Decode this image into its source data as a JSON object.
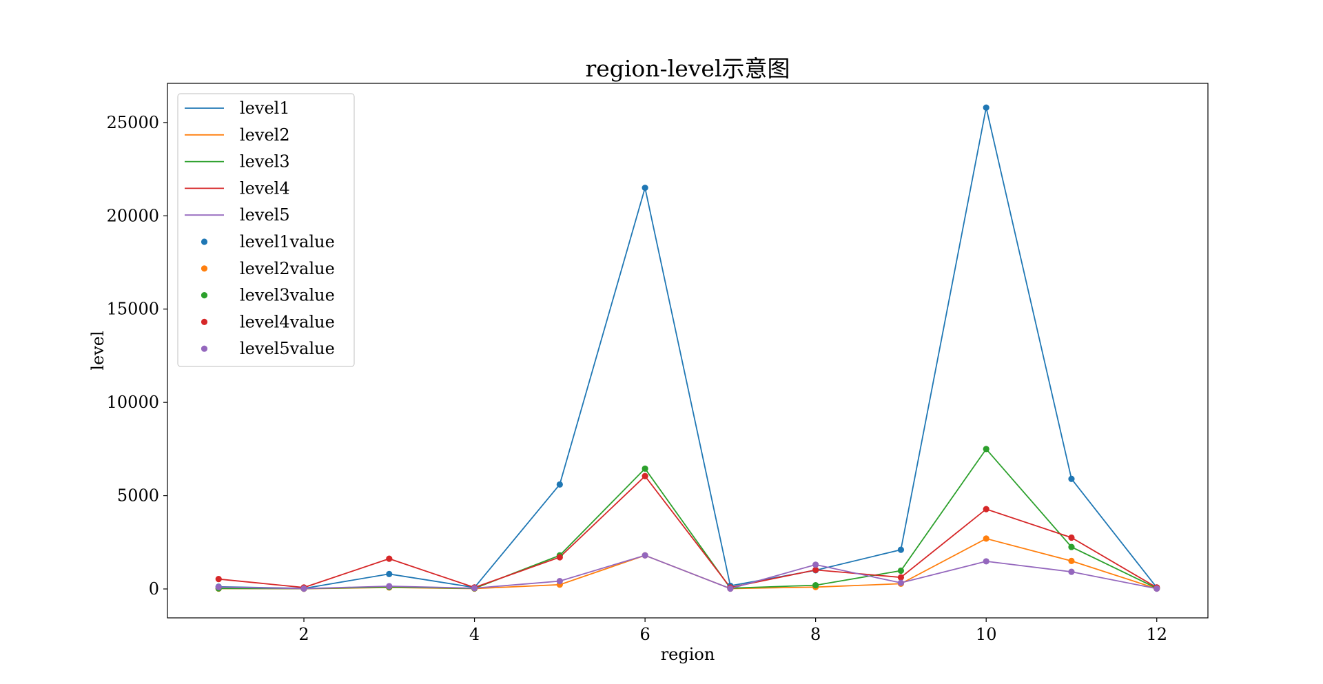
{
  "chart_data": {
    "type": "line",
    "title": "region-level示意图",
    "xlabel": "region",
    "ylabel": "level",
    "x": [
      1,
      2,
      3,
      4,
      5,
      6,
      7,
      8,
      9,
      10,
      11,
      12
    ],
    "xlim": [
      0.4,
      12.6
    ],
    "ylim": [
      -1550,
      27100
    ],
    "xticks": [
      2,
      4,
      6,
      8,
      10,
      12
    ],
    "yticks": [
      0,
      5000,
      10000,
      15000,
      20000,
      25000
    ],
    "grid": false,
    "legend_position": "top-left",
    "series": [
      {
        "name": "level1",
        "marker_name": "level1value",
        "color": "#1f77b4",
        "values": [
          120,
          30,
          800,
          80,
          5600,
          21500,
          170,
          1000,
          2100,
          25800,
          5900,
          80
        ]
      },
      {
        "name": "level2",
        "marker_name": "level2value",
        "color": "#ff7f0e",
        "values": [
          20,
          10,
          80,
          20,
          230,
          1800,
          20,
          100,
          280,
          2700,
          1500,
          20
        ]
      },
      {
        "name": "level3",
        "marker_name": "level3value",
        "color": "#2ca02c",
        "values": [
          30,
          20,
          100,
          30,
          1800,
          6450,
          40,
          200,
          980,
          7500,
          2250,
          40
        ]
      },
      {
        "name": "level4",
        "marker_name": "level4value",
        "color": "#d62728",
        "values": [
          530,
          80,
          1620,
          80,
          1700,
          6050,
          80,
          1020,
          620,
          4280,
          2750,
          80
        ]
      },
      {
        "name": "level5",
        "marker_name": "level5value",
        "color": "#9467bd",
        "values": [
          100,
          20,
          150,
          40,
          420,
          1800,
          20,
          1300,
          330,
          1480,
          920,
          20
        ]
      }
    ]
  }
}
